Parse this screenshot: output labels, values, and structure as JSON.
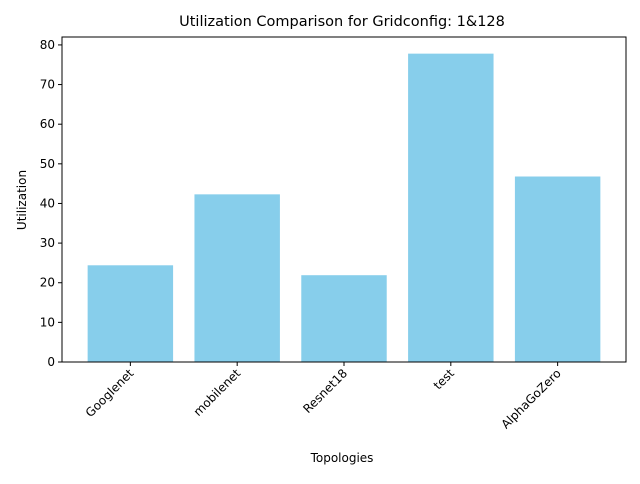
{
  "chart_data": {
    "type": "bar",
    "title": "Utilization Comparison for Gridconfig: 1&128",
    "xlabel": "Topologies",
    "ylabel": "Utilization",
    "categories": [
      "Googlenet",
      "mobilenet",
      "Resnet18",
      "test",
      "AlphaGoZero"
    ],
    "values": [
      24.4,
      42.3,
      21.9,
      77.8,
      46.8
    ],
    "ylim": [
      0,
      82
    ],
    "yticks": [
      0,
      10,
      20,
      30,
      40,
      50,
      60,
      70,
      80
    ],
    "bar_color": "#87ceeb",
    "grid": false,
    "legend": "none"
  }
}
